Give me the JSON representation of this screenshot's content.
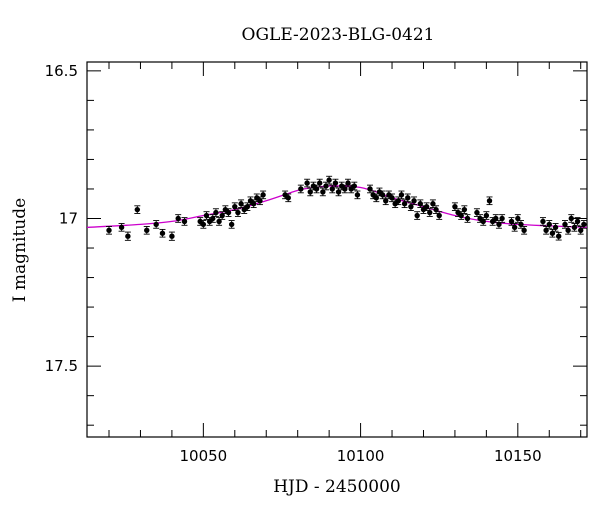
{
  "chart_data": {
    "type": "scatter",
    "title": "OGLE-2023-BLG-0421",
    "xlabel": "HJD - 2450000",
    "ylabel": "I magnitude",
    "xlim": [
      10013,
      10172
    ],
    "ylim": [
      17.74,
      16.47
    ],
    "y_inverted": true,
    "xticks": [
      "10050",
      "10100",
      "10150"
    ],
    "yticks": [
      "16.5",
      "17",
      "17.5"
    ],
    "grid": false,
    "colors": {
      "points": "#000000",
      "model": "#cc00cc",
      "axes": "#000000"
    },
    "series": [
      {
        "kind": "points_with_errorbars",
        "points": [
          [
            10020,
            17.04,
            0.013
          ],
          [
            10024,
            17.03,
            0.013
          ],
          [
            10026,
            17.06,
            0.014
          ],
          [
            10029,
            16.97,
            0.013
          ],
          [
            10032,
            17.04,
            0.013
          ],
          [
            10035,
            17.02,
            0.013
          ],
          [
            10037,
            17.05,
            0.013
          ],
          [
            10040,
            17.06,
            0.014
          ],
          [
            10042,
            17.0,
            0.013
          ],
          [
            10044,
            17.01,
            0.013
          ],
          [
            10049,
            17.01,
            0.013
          ],
          [
            10050,
            17.02,
            0.013
          ],
          [
            10051,
            16.99,
            0.013
          ],
          [
            10052,
            17.01,
            0.013
          ],
          [
            10053,
            17.0,
            0.013
          ],
          [
            10054,
            16.98,
            0.013
          ],
          [
            10055,
            17.01,
            0.013
          ],
          [
            10056,
            16.99,
            0.013
          ],
          [
            10057,
            16.97,
            0.013
          ],
          [
            10058,
            16.98,
            0.013
          ],
          [
            10059,
            17.02,
            0.013
          ],
          [
            10060,
            16.96,
            0.013
          ],
          [
            10061,
            16.98,
            0.013
          ],
          [
            10062,
            16.95,
            0.013
          ],
          [
            10063,
            16.97,
            0.013
          ],
          [
            10064,
            16.96,
            0.013
          ],
          [
            10065,
            16.94,
            0.013
          ],
          [
            10066,
            16.95,
            0.013
          ],
          [
            10067,
            16.93,
            0.013
          ],
          [
            10068,
            16.94,
            0.013
          ],
          [
            10069,
            16.92,
            0.013
          ],
          [
            10076,
            16.92,
            0.013
          ],
          [
            10077,
            16.93,
            0.013
          ],
          [
            10081,
            16.9,
            0.013
          ],
          [
            10083,
            16.88,
            0.013
          ],
          [
            10084,
            16.91,
            0.013
          ],
          [
            10085,
            16.89,
            0.013
          ],
          [
            10086,
            16.9,
            0.013
          ],
          [
            10087,
            16.88,
            0.013
          ],
          [
            10088,
            16.91,
            0.013
          ],
          [
            10089,
            16.89,
            0.013
          ],
          [
            10090,
            16.87,
            0.013
          ],
          [
            10091,
            16.9,
            0.013
          ],
          [
            10092,
            16.88,
            0.013
          ],
          [
            10093,
            16.91,
            0.013
          ],
          [
            10094,
            16.89,
            0.013
          ],
          [
            10095,
            16.9,
            0.013
          ],
          [
            10096,
            16.88,
            0.013
          ],
          [
            10097,
            16.9,
            0.013
          ],
          [
            10098,
            16.89,
            0.013
          ],
          [
            10099,
            16.92,
            0.013
          ],
          [
            10103,
            16.9,
            0.013
          ],
          [
            10104,
            16.92,
            0.013
          ],
          [
            10105,
            16.93,
            0.013
          ],
          [
            10106,
            16.91,
            0.013
          ],
          [
            10107,
            16.92,
            0.013
          ],
          [
            10108,
            16.94,
            0.013
          ],
          [
            10109,
            16.92,
            0.013
          ],
          [
            10110,
            16.93,
            0.013
          ],
          [
            10111,
            16.95,
            0.013
          ],
          [
            10112,
            16.94,
            0.013
          ],
          [
            10113,
            16.92,
            0.013
          ],
          [
            10114,
            16.95,
            0.013
          ],
          [
            10115,
            16.93,
            0.013
          ],
          [
            10116,
            16.96,
            0.013
          ],
          [
            10117,
            16.94,
            0.013
          ],
          [
            10118,
            16.99,
            0.013
          ],
          [
            10119,
            16.95,
            0.013
          ],
          [
            10120,
            16.97,
            0.013
          ],
          [
            10121,
            16.96,
            0.013
          ],
          [
            10122,
            16.98,
            0.013
          ],
          [
            10123,
            16.95,
            0.013
          ],
          [
            10124,
            16.97,
            0.013
          ],
          [
            10125,
            16.99,
            0.013
          ],
          [
            10130,
            16.96,
            0.013
          ],
          [
            10131,
            16.98,
            0.013
          ],
          [
            10132,
            16.99,
            0.013
          ],
          [
            10133,
            16.97,
            0.013
          ],
          [
            10134,
            17.0,
            0.013
          ],
          [
            10137,
            16.98,
            0.013
          ],
          [
            10138,
            17.0,
            0.013
          ],
          [
            10139,
            17.01,
            0.013
          ],
          [
            10140,
            16.99,
            0.013
          ],
          [
            10141,
            16.94,
            0.013
          ],
          [
            10142,
            17.01,
            0.013
          ],
          [
            10143,
            17.0,
            0.013
          ],
          [
            10144,
            17.02,
            0.013
          ],
          [
            10145,
            17.0,
            0.013
          ],
          [
            10148,
            17.01,
            0.013
          ],
          [
            10149,
            17.03,
            0.013
          ],
          [
            10150,
            17.0,
            0.013
          ],
          [
            10151,
            17.02,
            0.013
          ],
          [
            10152,
            17.04,
            0.013
          ],
          [
            10158,
            17.01,
            0.013
          ],
          [
            10159,
            17.04,
            0.013
          ],
          [
            10160,
            17.02,
            0.013
          ],
          [
            10161,
            17.05,
            0.013
          ],
          [
            10162,
            17.03,
            0.013
          ],
          [
            10163,
            17.06,
            0.013
          ],
          [
            10165,
            17.02,
            0.013
          ],
          [
            10166,
            17.04,
            0.013
          ],
          [
            10167,
            17.0,
            0.013
          ],
          [
            10168,
            17.03,
            0.013
          ],
          [
            10169,
            17.01,
            0.013
          ],
          [
            10170,
            17.04,
            0.013
          ],
          [
            10171,
            17.02,
            0.013
          ]
        ]
      },
      {
        "kind": "model_curve",
        "x": [
          10013,
          10030,
          10040,
          10050,
          10060,
          10070,
          10080,
          10085,
          10090,
          10095,
          10100,
          10105,
          10110,
          10120,
          10130,
          10140,
          10150,
          10160,
          10172
        ],
        "y": [
          17.03,
          17.02,
          17.01,
          16.99,
          16.97,
          16.94,
          16.905,
          16.895,
          16.89,
          16.89,
          16.895,
          16.91,
          16.93,
          16.96,
          16.99,
          17.01,
          17.02,
          17.025,
          17.03
        ]
      }
    ]
  }
}
